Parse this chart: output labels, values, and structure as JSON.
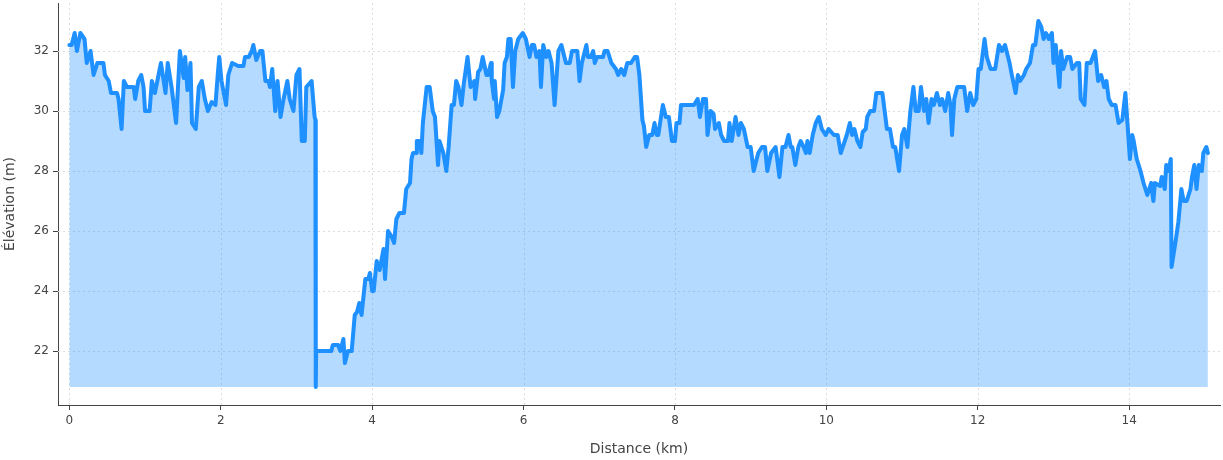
{
  "chart_data": {
    "type": "area",
    "xlabel": "Distance (km)",
    "ylabel": "Élévation (m)",
    "x": [
      0,
      0.03,
      0.07,
      0.1,
      0.145,
      0.2,
      0.23,
      0.28,
      0.32,
      0.37,
      0.45,
      0.47,
      0.52,
      0.55,
      0.63,
      0.65,
      0.69,
      0.72,
      0.76,
      0.85,
      0.87,
      0.91,
      0.95,
      0.98,
      1.0,
      1.06,
      1.09,
      1.13,
      1.21,
      1.27,
      1.3,
      1.35,
      1.41,
      1.46,
      1.51,
      1.53,
      1.56,
      1.6,
      1.62,
      1.67,
      1.71,
      1.75,
      1.79,
      1.83,
      1.88,
      1.93,
      1.96,
      1.98,
      2.01,
      2.07,
      2.1,
      2.15,
      2.23,
      2.3,
      2.32,
      2.37,
      2.41,
      2.43,
      2.47,
      2.52,
      2.55,
      2.59,
      2.63,
      2.65,
      2.68,
      2.72,
      2.75,
      2.79,
      2.83,
      2.88,
      2.91,
      2.96,
      3.0,
      3.04,
      3.07,
      3.11,
      3.13,
      3.2,
      3.24,
      3.25,
      3.255,
      3.26,
      3.46,
      3.48,
      3.55,
      3.58,
      3.62,
      3.64,
      3.68,
      3.73,
      3.77,
      3.8,
      3.83,
      3.86,
      3.91,
      3.95,
      3.97,
      4.0,
      4.02,
      4.06,
      4.1,
      4.15,
      4.17,
      4.21,
      4.26,
      4.29,
      4.32,
      4.36,
      4.42,
      4.45,
      4.5,
      4.52,
      4.54,
      4.58,
      4.59,
      4.63,
      4.65,
      4.67,
      4.72,
      4.76,
      4.8,
      4.83,
      4.87,
      4.89,
      4.94,
      4.98,
      5.01,
      5.05,
      5.08,
      5.11,
      5.14,
      5.18,
      5.21,
      5.26,
      5.3,
      5.35,
      5.36,
      5.4,
      5.43,
      5.46,
      5.51,
      5.53,
      5.57,
      5.58,
      5.61,
      5.62,
      5.65,
      5.68,
      5.73,
      5.75,
      5.78,
      5.8,
      5.83,
      5.86,
      5.89,
      5.93,
      5.99,
      6.03,
      6.08,
      6.11,
      6.14,
      6.17,
      6.21,
      6.23,
      6.26,
      6.3,
      6.33,
      6.37,
      6.41,
      6.46,
      6.5,
      6.54,
      6.56,
      6.61,
      6.64,
      6.71,
      6.74,
      6.77,
      6.83,
      6.85,
      6.89,
      6.92,
      6.94,
      6.97,
      7.05,
      7.07,
      7.11,
      7.16,
      7.22,
      7.25,
      7.29,
      7.33,
      7.37,
      7.42,
      7.47,
      7.5,
      7.53,
      7.57,
      7.59,
      7.62,
      7.66,
      7.7,
      7.73,
      7.76,
      7.78,
      7.84,
      7.88,
      7.92,
      7.96,
      8.0,
      8.02,
      8.06,
      8.08,
      8.15,
      8.25,
      8.3,
      8.33,
      8.37,
      8.41,
      8.43,
      8.47,
      8.51,
      8.53,
      8.58,
      8.61,
      8.65,
      8.7,
      8.72,
      8.75,
      8.8,
      8.84,
      8.87,
      8.91,
      8.96,
      9.0,
      9.04,
      9.07,
      9.1,
      9.15,
      9.19,
      9.22,
      9.27,
      9.33,
      9.38,
      9.42,
      9.46,
      9.5,
      9.53,
      9.55,
      9.59,
      9.63,
      9.66,
      9.7,
      9.73,
      9.75,
      9.78,
      9.82,
      9.86,
      9.9,
      9.94,
      9.99,
      10.03,
      10.1,
      10.15,
      10.19,
      10.23,
      10.27,
      10.31,
      10.34,
      10.37,
      10.41,
      10.45,
      10.48,
      10.52,
      10.54,
      10.58,
      10.63,
      10.66,
      10.74,
      10.8,
      10.84,
      10.88,
      10.91,
      10.96,
      11.0,
      11.03,
      11.07,
      11.11,
      11.15,
      11.18,
      11.22,
      11.25,
      11.29,
      11.32,
      11.35,
      11.39,
      11.42,
      11.46,
      11.5,
      11.53,
      11.57,
      11.61,
      11.64,
      11.66,
      11.69,
      11.73,
      11.82,
      11.86,
      11.9,
      11.94,
      11.98,
      12.01,
      12.04,
      12.09,
      12.12,
      12.17,
      12.23,
      12.28,
      12.32,
      12.36,
      12.42,
      12.45,
      12.5,
      12.53,
      12.56,
      12.61,
      12.64,
      12.69,
      12.73,
      12.76,
      12.8,
      12.84,
      12.87,
      12.9,
      12.94,
      12.98,
      13.0,
      13.03,
      13.08,
      13.1,
      13.13,
      13.18,
      13.22,
      13.25,
      13.31,
      13.34,
      13.36,
      13.41,
      13.44,
      13.49,
      13.55,
      13.59,
      13.63,
      13.67,
      13.7,
      13.73,
      13.77,
      13.82,
      13.86,
      13.91,
      13.95,
      14.01,
      14.04,
      14.06,
      14.1,
      14.15,
      14.19,
      14.24,
      14.29,
      14.32,
      14.34,
      14.41,
      14.43,
      14.47,
      14.49,
      14.52,
      14.55,
      14.56,
      14.61,
      14.65,
      14.69,
      14.72,
      14.76,
      14.81,
      14.83,
      14.86,
      14.89,
      14.92,
      14.96,
      14.98,
      15.02,
      15.04
    ],
    "series": [
      {
        "color": "#1e90ff",
        "values": [
          32.2,
          32.2,
          32.6,
          32.0,
          32.6,
          32.4,
          31.6,
          32.0,
          31.2,
          31.6,
          31.6,
          31.2,
          31.0,
          30.6,
          30.6,
          30.4,
          29.4,
          31.0,
          30.8,
          30.8,
          30.4,
          31.0,
          31.2,
          30.8,
          30.0,
          30.0,
          31.0,
          30.6,
          31.6,
          30.6,
          31.6,
          30.8,
          29.6,
          32.0,
          31.1,
          31.8,
          30.7,
          31.6,
          29.6,
          29.4,
          30.8,
          31.0,
          30.4,
          30.0,
          30.3,
          30.2,
          31.2,
          31.8,
          31.0,
          30.2,
          31.2,
          31.6,
          31.5,
          31.5,
          31.8,
          31.8,
          32.0,
          32.2,
          31.7,
          32.0,
          32.0,
          31.0,
          31.0,
          30.8,
          31.4,
          30.0,
          31.0,
          29.8,
          30.4,
          31.0,
          30.4,
          30.0,
          31.2,
          31.4,
          29.0,
          29.0,
          30.8,
          31.0,
          29.8,
          29.7,
          20.8,
          22.0,
          22.0,
          22.2,
          22.2,
          22.0,
          22.4,
          21.6,
          22.0,
          22.0,
          23.2,
          23.3,
          23.6,
          23.2,
          24.4,
          24.4,
          24.6,
          24.0,
          24.0,
          25.0,
          24.7,
          25.4,
          24.4,
          26.0,
          25.8,
          25.6,
          26.4,
          26.6,
          26.6,
          27.4,
          27.6,
          28.4,
          28.6,
          28.6,
          29.0,
          29.0,
          28.6,
          29.6,
          30.8,
          30.8,
          30.0,
          29.8,
          28.2,
          29.0,
          28.6,
          28.0,
          28.8,
          30.2,
          30.2,
          31.0,
          30.8,
          30.2,
          30.9,
          31.8,
          30.8,
          31.0,
          30.4,
          31.3,
          31.4,
          31.8,
          31.2,
          31.2,
          31.6,
          31.0,
          30.4,
          31.0,
          29.8,
          30.0,
          30.7,
          31.6,
          31.8,
          32.4,
          32.4,
          30.8,
          32.0,
          32.4,
          32.6,
          32.4,
          31.8,
          32.2,
          32.2,
          31.8,
          32.0,
          30.8,
          32.2,
          31.8,
          32.0,
          31.6,
          30.2,
          32.0,
          32.2,
          31.8,
          31.6,
          31.6,
          32.0,
          32.0,
          31.0,
          31.6,
          32.2,
          31.8,
          31.8,
          32.0,
          31.6,
          31.8,
          31.8,
          32.0,
          32.0,
          31.6,
          31.4,
          31.2,
          31.4,
          31.2,
          31.6,
          31.6,
          31.8,
          31.8,
          31.2,
          29.7,
          29.5,
          28.8,
          29.2,
          29.2,
          29.6,
          29.2,
          29.2,
          30.2,
          29.8,
          29.8,
          29.0,
          29.0,
          29.6,
          29.6,
          30.2,
          30.2,
          30.2,
          30.4,
          29.8,
          30.4,
          30.4,
          29.2,
          30.0,
          29.9,
          29.4,
          29.6,
          29.2,
          29.0,
          29.0,
          29.6,
          29.0,
          29.8,
          29.2,
          29.6,
          29.4,
          28.8,
          28.8,
          28.0,
          28.3,
          28.6,
          28.8,
          28.8,
          28.0,
          28.6,
          28.8,
          27.8,
          28.8,
          28.8,
          29.2,
          28.8,
          28.8,
          28.2,
          28.8,
          29.0,
          28.8,
          28.6,
          29.0,
          28.6,
          29.2,
          29.6,
          29.8,
          29.4,
          29.2,
          29.4,
          29.2,
          29.2,
          28.6,
          28.9,
          29.2,
          29.6,
          29.2,
          29.4,
          29.0,
          28.8,
          29.3,
          29.4,
          29.8,
          30.0,
          30.0,
          30.6,
          30.6,
          29.4,
          29.4,
          28.8,
          28.8,
          28.0,
          29.2,
          29.4,
          28.8,
          30.0,
          30.8,
          30.0,
          30.0,
          30.8,
          30.0,
          30.4,
          29.6,
          30.4,
          30.2,
          30.6,
          30.2,
          30.4,
          30.0,
          30.6,
          30.2,
          29.2,
          30.4,
          30.8,
          30.8,
          30.0,
          30.6,
          30.2,
          30.4,
          31.4,
          31.4,
          32.4,
          31.8,
          31.4,
          31.4,
          32.2,
          32.0,
          32.2,
          31.6,
          31.2,
          30.6,
          31.2,
          31.0,
          31.2,
          31.4,
          31.6,
          32.2,
          32.2,
          33.0,
          32.8,
          32.4,
          32.6,
          32.4,
          32.6,
          31.6,
          32.2,
          30.8,
          32.0,
          31.4,
          31.8,
          31.8,
          31.4,
          31.6,
          31.6,
          30.4,
          30.2,
          31.6,
          31.6,
          32.0,
          31.0,
          31.2,
          30.8,
          31.0,
          30.4,
          30.2,
          30.2,
          29.6,
          29.7,
          30.6,
          28.4,
          29.2,
          29.0,
          28.4,
          28.0,
          27.6,
          27.2,
          27.6,
          27.0,
          27.6,
          27.5,
          27.8,
          27.4,
          28.2,
          28.0,
          28.4,
          24.8,
          25.6,
          26.3,
          27.4,
          27.0,
          27.0,
          27.4,
          27.8,
          28.2,
          27.4,
          28.2,
          28.0,
          28.6,
          28.8,
          28.6
        ]
      }
    ],
    "xlim": [
      -0.15,
      15.2
    ],
    "ylim": [
      20.2,
      33.6
    ],
    "xticks": [
      0,
      2,
      4,
      6,
      8,
      10,
      12,
      14
    ],
    "yticks": [
      22,
      24,
      26,
      28,
      30,
      32
    ],
    "grid": true
  }
}
